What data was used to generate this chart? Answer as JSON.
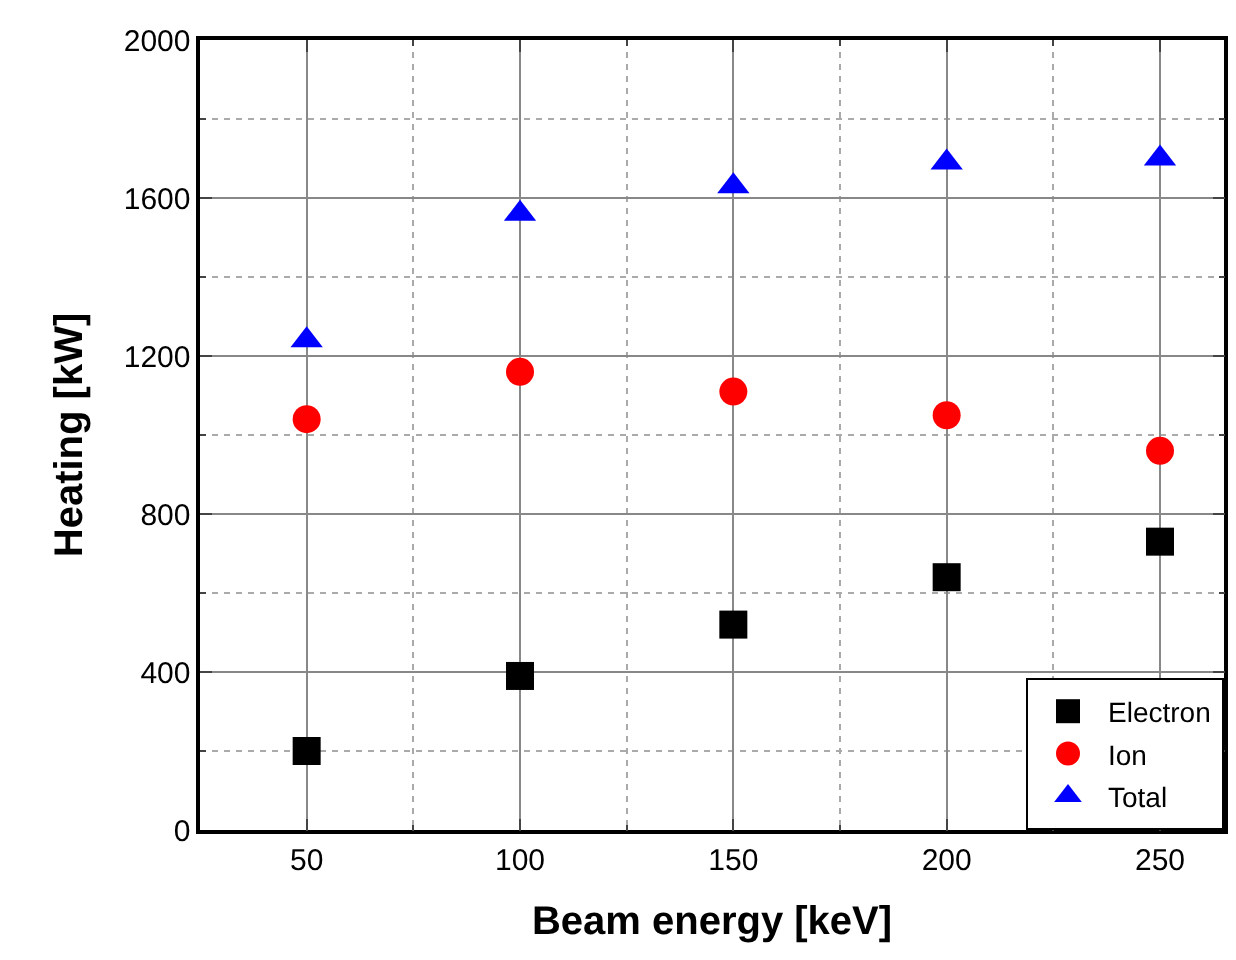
{
  "chart_data": {
    "type": "scatter",
    "xlabel": "Beam energy [keV]",
    "ylabel": "Heating [kW]",
    "x": [
      50,
      100,
      150,
      200,
      250
    ],
    "series": [
      {
        "name": "Electron",
        "color": "#000000",
        "marker": "square",
        "values": [
          200,
          390,
          520,
          640,
          730
        ]
      },
      {
        "name": "Ion",
        "color": "#ff0000",
        "marker": "circle",
        "values": [
          1040,
          1160,
          1110,
          1050,
          960
        ]
      },
      {
        "name": "Total",
        "color": "#0000ff",
        "marker": "triangle",
        "values": [
          1240,
          1560,
          1630,
          1690,
          1700
        ]
      }
    ],
    "xlim": [
      25,
      265
    ],
    "xticks": [
      50,
      100,
      150,
      200,
      250
    ],
    "ylim": [
      0,
      2000
    ],
    "yticks": [
      0,
      400,
      800,
      1200,
      1600,
      2000
    ],
    "grid": true,
    "legend": "bottom right"
  }
}
